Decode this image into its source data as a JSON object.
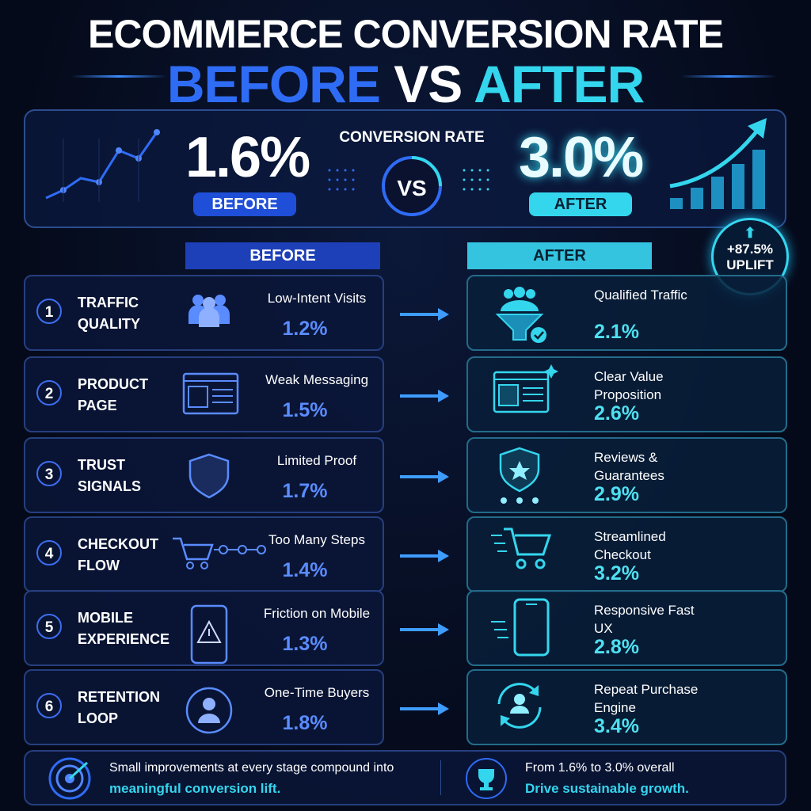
{
  "header": {
    "title": "ECOMMERCE CONVERSION RATE",
    "before": "BEFORE",
    "vs": "VS",
    "after": "AFTER"
  },
  "summary": {
    "before_value": "1.6%",
    "before_label": "BEFORE",
    "metric": "CONVERSION RATE",
    "vs": "VS",
    "after_value": "3.0%",
    "after_label": "AFTER",
    "uplift_value": "+87.5%",
    "uplift_label": "UPLIFT"
  },
  "columns": {
    "before": "BEFORE",
    "after": "AFTER"
  },
  "rows": [
    {
      "number": "1",
      "stage": [
        "TRAFFIC",
        "QUALITY"
      ],
      "before_text": "Low-Intent Visits",
      "before_value": "1.2%",
      "after_text": "Qualified Traffic",
      "after_value": "2.1%"
    },
    {
      "number": "2",
      "stage": [
        "PRODUCT",
        "PAGE"
      ],
      "before_text": "Weak Messaging",
      "before_value": "1.5%",
      "after_text": "Clear Value Proposition",
      "after_value": "2.6%"
    },
    {
      "number": "3",
      "stage": [
        "TRUST",
        "SIGNALS"
      ],
      "before_text": "Limited Proof",
      "before_value": "1.7%",
      "after_text": "Reviews & Guarantees",
      "after_value": "2.9%"
    },
    {
      "number": "4",
      "stage": [
        "CHECKOUT",
        "FLOW"
      ],
      "before_text": "Too Many Steps",
      "before_value": "1.4%",
      "after_text": "Streamlined Checkout",
      "after_value": "3.2%"
    },
    {
      "number": "5",
      "stage": [
        "MOBILE",
        "EXPERIENCE"
      ],
      "before_text": "Friction on Mobile",
      "before_value": "1.3%",
      "after_text": "Responsive Fast UX",
      "after_value": "2.8%"
    },
    {
      "number": "6",
      "stage": [
        "RETENTION",
        "LOOP"
      ],
      "before_text": "One-Time Buyers",
      "before_value": "1.8%",
      "after_text": "Repeat Purchase Engine",
      "after_value": "3.4%"
    }
  ],
  "footer": {
    "left_line1": "Small improvements at every stage compound into",
    "left_line2": "meaningful conversion lift.",
    "right_line1": "From 1.6% to 3.0% overall",
    "right_line2": "Drive sustainable growth."
  }
}
